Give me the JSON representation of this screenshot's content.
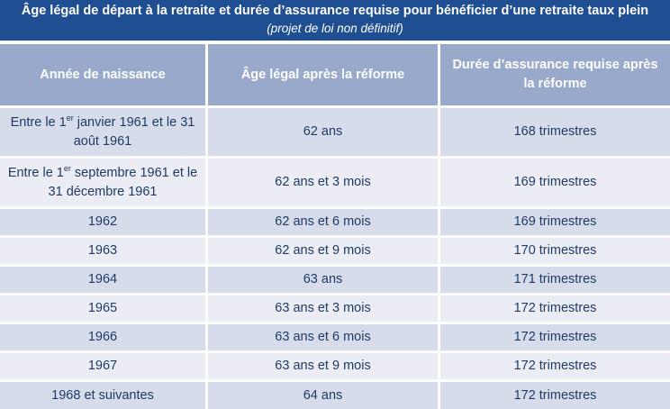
{
  "title": {
    "main": "Âge légal de départ à la retraite et durée d’assurance requise pour bénéficier d’une retraite taux plein",
    "sub": "(projet de loi non définitif)"
  },
  "table": {
    "headers": [
      "Année  de naissance",
      "Âge légal après la réforme",
      "Durée d’assurance requise après la réforme"
    ],
    "rows": [
      {
        "birth_pre": "Entre le 1",
        "birth_sup": "er",
        "birth_post": " janvier 1961 et le 31 août 1961",
        "age": "62 ans",
        "duration": "168 trimestres"
      },
      {
        "birth_pre": "Entre le 1",
        "birth_sup": "er",
        "birth_post": " septembre 1961 et le 31 décembre 1961",
        "age": "62 ans et 3 mois",
        "duration": "169 trimestres"
      },
      {
        "birth": "1962",
        "age": "62 ans et 6 mois",
        "duration": "169 trimestres"
      },
      {
        "birth": "1963",
        "age": "62 ans et 9 mois",
        "duration": "170 trimestres"
      },
      {
        "birth": "1964",
        "age": "63 ans",
        "duration": "171 trimestres"
      },
      {
        "birth": "1965",
        "age": "63 ans et 3 mois",
        "duration": "172 trimestres"
      },
      {
        "birth": "1966",
        "age": "63 ans et 6 mois",
        "duration": "172 trimestres"
      },
      {
        "birth": "1967",
        "age": "63 ans et 9 mois",
        "duration": "172 trimestres"
      },
      {
        "birth": "1968 et suivantes",
        "age": "64 ans",
        "duration": "172 trimestres"
      }
    ]
  },
  "colors": {
    "title_bg": "#1f4e93",
    "header_bg": "#98a9cb",
    "row_odd": "#d7dceb",
    "row_even": "#ecedf4",
    "text": "#1f3a66"
  }
}
